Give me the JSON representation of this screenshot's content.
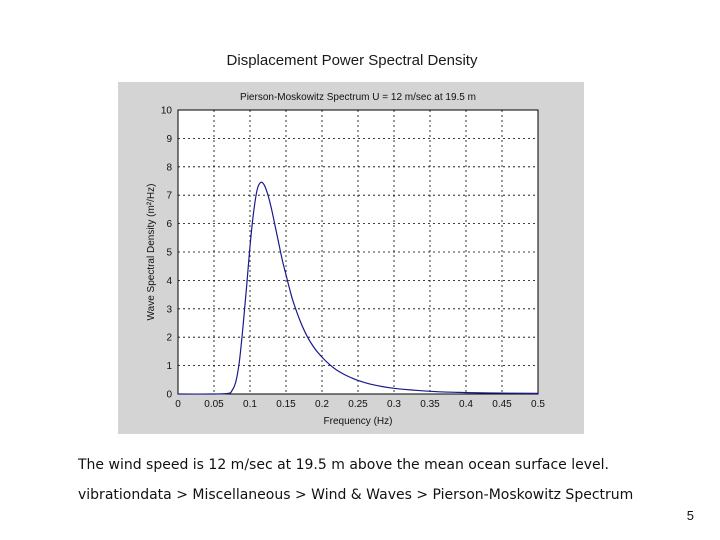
{
  "slide": {
    "title": "Displacement Power Spectral Density",
    "caption": "The wind speed is 12 m/sec at 19.5 m above the mean ocean surface level.",
    "breadcrumb": "vibrationdata > Miscellaneous > Wind & Waves > Pierson-Moskowitz Spectrum",
    "page_number": "5"
  },
  "chart_data": {
    "type": "line",
    "title": "Pierson-Moskowitz Spectrum  U = 12 m/sec at 19.5 m",
    "xlabel": "Frequency (Hz)",
    "ylabel": "Wave Spectral Density (m²/Hz)",
    "xlim": [
      0,
      0.5
    ],
    "ylim": [
      0,
      10
    ],
    "xticks": [
      0,
      0.05,
      0.1,
      0.15,
      0.2,
      0.25,
      0.3,
      0.35,
      0.4,
      0.45,
      0.5
    ],
    "xtick_labels": [
      "0",
      "0.05",
      "0.1",
      "0.15",
      "0.2",
      "0.25",
      "0.3",
      "0.35",
      "0.4",
      "0.45",
      "0.5"
    ],
    "yticks": [
      0,
      1,
      2,
      3,
      4,
      5,
      6,
      7,
      8,
      9,
      10
    ],
    "ytick_labels": [
      "0",
      "1",
      "2",
      "3",
      "4",
      "5",
      "6",
      "7",
      "8",
      "9",
      "10"
    ],
    "grid": true,
    "line_color": "#1a1a8c",
    "series": [
      {
        "x": [
          0,
          0.05,
          0.07,
          0.075,
          0.08,
          0.085,
          0.09,
          0.095,
          0.1,
          0.105,
          0.11,
          0.115,
          0.12,
          0.125,
          0.13,
          0.135,
          0.14,
          0.145,
          0.15,
          0.155,
          0.16,
          0.17,
          0.18,
          0.19,
          0.2,
          0.21,
          0.22,
          0.23,
          0.24,
          0.25,
          0.27,
          0.3,
          0.33,
          0.36,
          0.4,
          0.45,
          0.5
        ],
        "y": [
          0,
          0,
          0.02,
          0.12,
          0.4,
          1.1,
          2.3,
          3.7,
          5.2,
          6.4,
          7.2,
          7.45,
          7.35,
          7.0,
          6.5,
          5.9,
          5.3,
          4.7,
          4.2,
          3.7,
          3.25,
          2.55,
          2.0,
          1.6,
          1.3,
          1.05,
          0.85,
          0.7,
          0.58,
          0.48,
          0.33,
          0.2,
          0.13,
          0.08,
          0.05,
          0.03,
          0.02
        ]
      }
    ]
  }
}
